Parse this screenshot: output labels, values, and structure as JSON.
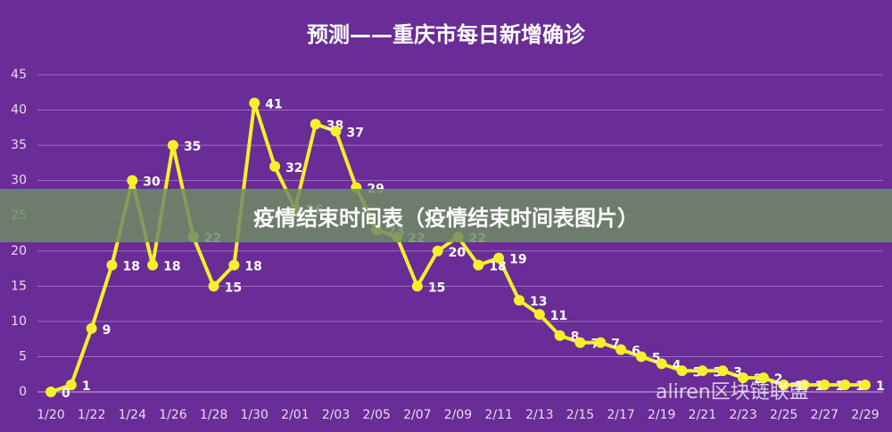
{
  "chart_data": {
    "type": "line",
    "title": "预测——重庆市每日新增确诊",
    "categories": [
      "1/20",
      null,
      "1/22",
      null,
      "1/24",
      null,
      "1/26",
      null,
      "1/28",
      null,
      "1/30",
      null,
      "2/01",
      null,
      "2/03",
      null,
      "2/05",
      null,
      "2/07",
      null,
      "2/09",
      null,
      "2/11",
      null,
      "2/13",
      null,
      "2/15",
      null,
      "2/17",
      null,
      "2/19",
      null,
      "2/21",
      null,
      "2/23",
      null,
      "2/25",
      null,
      "2/27",
      null,
      "2/29"
    ],
    "series": [
      {
        "name": "预测",
        "color": "#f5ef2c",
        "values": [
          0,
          1,
          9,
          18,
          30,
          18,
          35,
          22,
          15,
          18,
          41,
          32,
          26,
          38,
          37,
          29,
          23,
          22,
          15,
          20,
          22,
          18,
          19,
          13,
          11,
          8,
          7,
          7,
          6,
          5,
          4,
          3,
          3,
          3,
          2,
          2,
          1,
          1,
          1,
          1,
          1
        ]
      }
    ],
    "ylim": [
      0,
      45
    ],
    "yticks": [
      0,
      5,
      10,
      15,
      20,
      25,
      30,
      35,
      40,
      45
    ],
    "grid": true
  },
  "overlay": {
    "banner": "疫情结束时间表（疫情结束时间表图片）",
    "watermark": "aliren区块链联盟"
  }
}
